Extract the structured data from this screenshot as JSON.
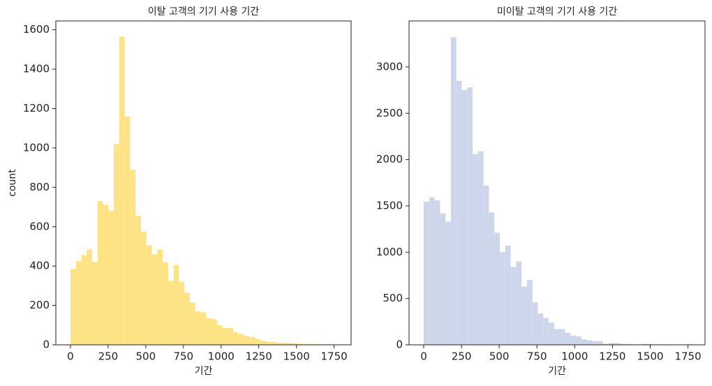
{
  "chart_data": [
    {
      "type": "histogram",
      "title": "이탈 고객의 기기 사용 기간",
      "xlabel": "기간",
      "ylabel": "count",
      "color": "#fde383",
      "bins": [
        0,
        36,
        72,
        108,
        144,
        180,
        216,
        252,
        288,
        324,
        360,
        396,
        432,
        468,
        504,
        540,
        576,
        612,
        648,
        684,
        720,
        756,
        792,
        828,
        864,
        900,
        936,
        972,
        1008,
        1044,
        1080,
        1116,
        1152,
        1188,
        1224,
        1260,
        1296,
        1332,
        1368,
        1404,
        1440,
        1476,
        1512,
        1548,
        1584,
        1620,
        1656,
        1692,
        1728,
        1764,
        1800
      ],
      "values": [
        385,
        425,
        455,
        485,
        420,
        730,
        710,
        680,
        1020,
        1565,
        1160,
        890,
        655,
        575,
        505,
        460,
        485,
        420,
        325,
        405,
        320,
        265,
        215,
        170,
        165,
        135,
        130,
        100,
        85,
        85,
        65,
        55,
        45,
        40,
        30,
        20,
        15,
        15,
        10,
        10,
        10,
        8,
        5,
        5,
        5,
        5,
        3,
        3,
        2,
        2
      ],
      "xlim": [
        -97,
        1863
      ],
      "ylim": [
        0,
        1645
      ],
      "xticks": [
        0,
        250,
        500,
        750,
        1000,
        1250,
        1500,
        1750
      ],
      "yticks": [
        0,
        200,
        400,
        600,
        800,
        1000,
        1200,
        1400,
        1600
      ]
    },
    {
      "type": "histogram",
      "title": "미이탈 고객의 기기 사용 기간",
      "xlabel": "기간",
      "color": "#cdd6ea",
      "bins": [
        0,
        36,
        72,
        108,
        144,
        180,
        216,
        252,
        288,
        324,
        360,
        396,
        432,
        468,
        504,
        540,
        576,
        612,
        648,
        684,
        720,
        756,
        792,
        828,
        864,
        900,
        936,
        972,
        1008,
        1044,
        1080,
        1116,
        1152,
        1188,
        1224,
        1260,
        1296,
        1332,
        1368,
        1404,
        1440,
        1476,
        1512,
        1548,
        1584,
        1620,
        1656,
        1692,
        1728,
        1764,
        1800
      ],
      "values": [
        1545,
        1595,
        1560,
        1420,
        1330,
        3320,
        2850,
        2750,
        2780,
        2060,
        2090,
        1720,
        1430,
        1210,
        1000,
        1070,
        840,
        900,
        630,
        700,
        460,
        340,
        290,
        240,
        170,
        170,
        130,
        100,
        90,
        60,
        50,
        40,
        40,
        10,
        20,
        20,
        10,
        10,
        5,
        5,
        10,
        10,
        5,
        5,
        5,
        3,
        3,
        2,
        2,
        2
      ],
      "xlim": [
        -97,
        1863
      ],
      "ylim": [
        0,
        3497
      ],
      "xticks": [
        0,
        250,
        500,
        750,
        1000,
        1250,
        1500,
        1750
      ],
      "yticks": [
        0,
        500,
        1000,
        1500,
        2000,
        2500,
        3000
      ]
    }
  ]
}
